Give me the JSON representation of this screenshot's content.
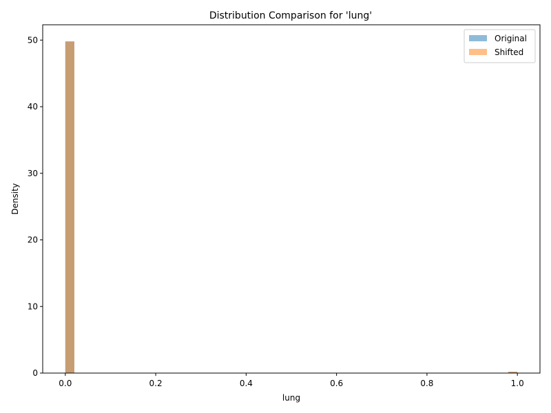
{
  "chart_data": {
    "type": "bar",
    "title": "Distribution Comparison for 'lung'",
    "xlabel": "lung",
    "ylabel": "Density",
    "xlim": [
      -0.05,
      1.05
    ],
    "ylim": [
      0,
      52.3
    ],
    "xticks": [
      "0.0",
      "0.2",
      "0.4",
      "0.6",
      "0.8",
      "1.0"
    ],
    "yticks": [
      "0",
      "10",
      "20",
      "30",
      "40",
      "50"
    ],
    "bin_width": 0.02,
    "legend_position": "top-right",
    "grid": false,
    "series": [
      {
        "name": "Original",
        "color": "#1f77b4",
        "opacity": 0.5,
        "bins": [
          {
            "x0": 0.0,
            "density": 49.8
          },
          {
            "x0": 0.98,
            "density": 0.2
          }
        ]
      },
      {
        "name": "Shifted",
        "color": "#ff7f0e",
        "opacity": 0.5,
        "bins": [
          {
            "x0": 0.0,
            "density": 49.8
          },
          {
            "x0": 0.98,
            "density": 0.2
          }
        ]
      }
    ]
  }
}
